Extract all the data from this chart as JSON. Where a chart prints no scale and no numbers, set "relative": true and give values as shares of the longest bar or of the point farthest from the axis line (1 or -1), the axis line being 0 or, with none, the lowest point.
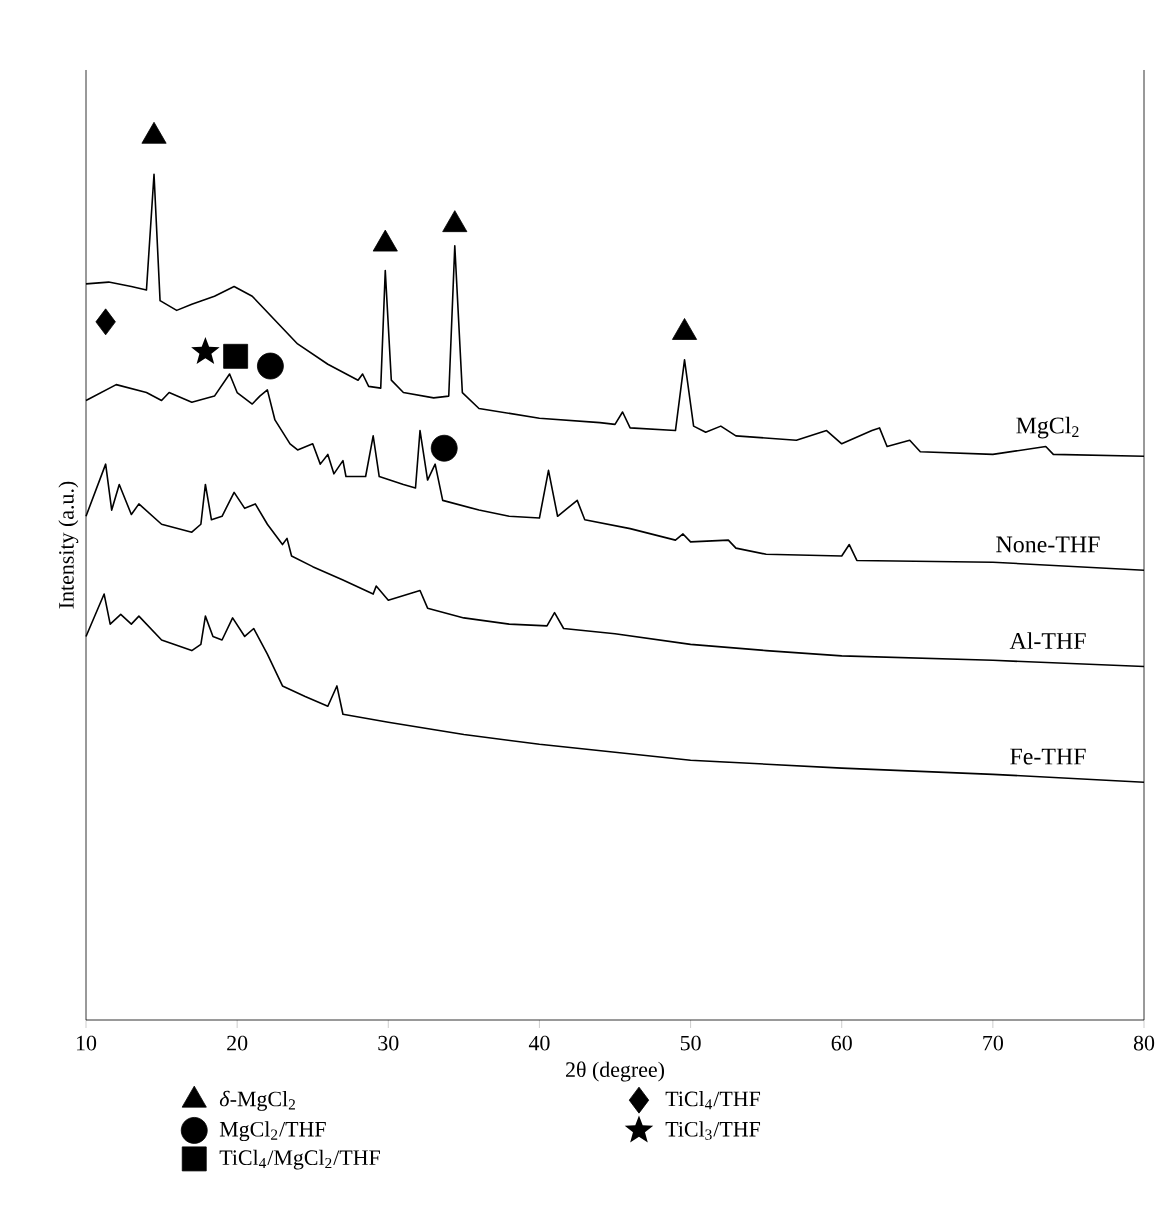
{
  "chart_data": {
    "type": "line",
    "relative": true,
    "xlabel": "2θ (degree)",
    "ylabel": "Intensity (a.u.)",
    "xlim": [
      10,
      80
    ],
    "xticks": [
      10,
      20,
      30,
      40,
      50,
      60,
      70,
      80
    ],
    "legend": "bottom",
    "line_style": "solid",
    "grid": false,
    "series": [
      {
        "name": "MgCl$_{2}$",
        "color": "#000000",
        "x": [
          10,
          11.5,
          13,
          14,
          14.5,
          14.9,
          16,
          17,
          18.5,
          19.8,
          21,
          22.5,
          24,
          26,
          28,
          28.3,
          28.7,
          29.5,
          29.8,
          30.2,
          31,
          33,
          34,
          34.4,
          34.9,
          36,
          40,
          44,
          45,
          45.5,
          46,
          49,
          49.6,
          50.2,
          51,
          52,
          53,
          57,
          59,
          60,
          62,
          62.5,
          63,
          64.5,
          65.2,
          70,
          73.5,
          74,
          80
        ],
        "values": [
          0.833,
          0.835,
          0.83,
          0.826,
          0.957,
          0.814,
          0.803,
          0.81,
          0.819,
          0.83,
          0.819,
          0.792,
          0.765,
          0.742,
          0.724,
          0.731,
          0.717,
          0.715,
          0.848,
          0.724,
          0.71,
          0.704,
          0.706,
          0.876,
          0.71,
          0.692,
          0.681,
          0.676,
          0.674,
          0.688,
          0.67,
          0.667,
          0.747,
          0.672,
          0.665,
          0.672,
          0.661,
          0.656,
          0.667,
          0.652,
          0.667,
          0.67,
          0.649,
          0.656,
          0.643,
          0.64,
          0.649,
          0.64,
          0.638
        ]
      },
      {
        "name": "None-THF",
        "color": "#000000",
        "x": [
          10,
          12,
          14,
          15,
          15.5,
          17,
          18.5,
          19.5,
          20,
          21,
          21.5,
          22,
          22.5,
          23.5,
          24,
          25,
          25.5,
          26,
          26.4,
          27,
          27.2,
          28.5,
          29,
          29.4,
          31,
          31.8,
          32.1,
          32.6,
          33.1,
          33.6,
          36,
          38,
          40,
          40.6,
          41.2,
          42.5,
          43,
          46,
          49,
          49.5,
          50,
          52.5,
          53,
          55,
          60,
          60.5,
          61,
          70,
          80
        ],
        "values": [
          0.701,
          0.719,
          0.71,
          0.701,
          0.71,
          0.699,
          0.706,
          0.731,
          0.71,
          0.697,
          0.706,
          0.713,
          0.679,
          0.652,
          0.645,
          0.652,
          0.629,
          0.64,
          0.618,
          0.633,
          0.615,
          0.615,
          0.661,
          0.615,
          0.606,
          0.602,
          0.667,
          0.611,
          0.629,
          0.588,
          0.577,
          0.57,
          0.568,
          0.622,
          0.57,
          0.588,
          0.566,
          0.556,
          0.543,
          0.55,
          0.541,
          0.543,
          0.534,
          0.527,
          0.525,
          0.538,
          0.52,
          0.518,
          0.509
        ]
      },
      {
        "name": "Al-THF",
        "color": "#000000",
        "x": [
          10,
          11.3,
          11.7,
          12.2,
          13,
          13.5,
          15,
          17,
          17.6,
          17.9,
          18.3,
          19,
          19.8,
          20.5,
          21.2,
          22,
          23,
          23.3,
          23.6,
          25,
          27,
          29,
          29.2,
          30,
          32.1,
          32.6,
          35,
          38,
          40.5,
          41,
          41.6,
          45,
          50,
          55,
          60,
          70,
          80
        ],
        "values": [
          0.57,
          0.629,
          0.577,
          0.606,
          0.572,
          0.584,
          0.561,
          0.552,
          0.561,
          0.606,
          0.566,
          0.57,
          0.597,
          0.579,
          0.584,
          0.561,
          0.538,
          0.545,
          0.525,
          0.513,
          0.498,
          0.482,
          0.491,
          0.475,
          0.486,
          0.466,
          0.455,
          0.448,
          0.446,
          0.461,
          0.443,
          0.437,
          0.425,
          0.418,
          0.412,
          0.407,
          0.4
        ]
      },
      {
        "name": "Fe-THF",
        "color": "#000000",
        "x": [
          10,
          11.2,
          11.6,
          12.3,
          13,
          13.5,
          15,
          17,
          17.6,
          17.9,
          18.4,
          19,
          19.7,
          20.5,
          21.1,
          22,
          23,
          24.5,
          26,
          26.6,
          27,
          30,
          35,
          40,
          45,
          50,
          60,
          70,
          80
        ],
        "values": [
          0.434,
          0.482,
          0.448,
          0.459,
          0.448,
          0.457,
          0.43,
          0.418,
          0.425,
          0.457,
          0.434,
          0.43,
          0.455,
          0.434,
          0.443,
          0.414,
          0.378,
          0.366,
          0.355,
          0.378,
          0.346,
          0.337,
          0.323,
          0.312,
          0.303,
          0.294,
          0.285,
          0.278,
          0.269
        ]
      },
      {
        "name": "*δ*-MgCl$_{2}$",
        "type": "scatter",
        "marker": "triangle",
        "color": "#000000",
        "x": [
          14.5,
          29.8,
          34.4,
          49.6
        ],
        "values": [
          1.0,
          0.878,
          0.9,
          0.778
        ]
      },
      {
        "name": "MgCl$_{2}$/THF",
        "type": "scatter",
        "marker": "circle",
        "color": "#000000",
        "x": [
          22.2,
          33.7
        ],
        "values": [
          0.74,
          0.647
        ]
      },
      {
        "name": "TiCl$_{4}$/MgCl$_{2}$/THF",
        "type": "scatter",
        "marker": "square",
        "color": "#000000",
        "x": [
          19.9
        ],
        "values": [
          0.751
        ]
      },
      {
        "name": "TiCl$_{4}$/THF",
        "type": "scatter",
        "marker": "diamond",
        "color": "#000000",
        "x": [
          11.3
        ],
        "values": [
          0.79
        ]
      },
      {
        "name": "TiCl$_{3}$/THF",
        "type": "scatter",
        "marker": "star",
        "color": "#000000",
        "x": [
          17.9
        ],
        "values": [
          0.756
        ]
      }
    ]
  }
}
